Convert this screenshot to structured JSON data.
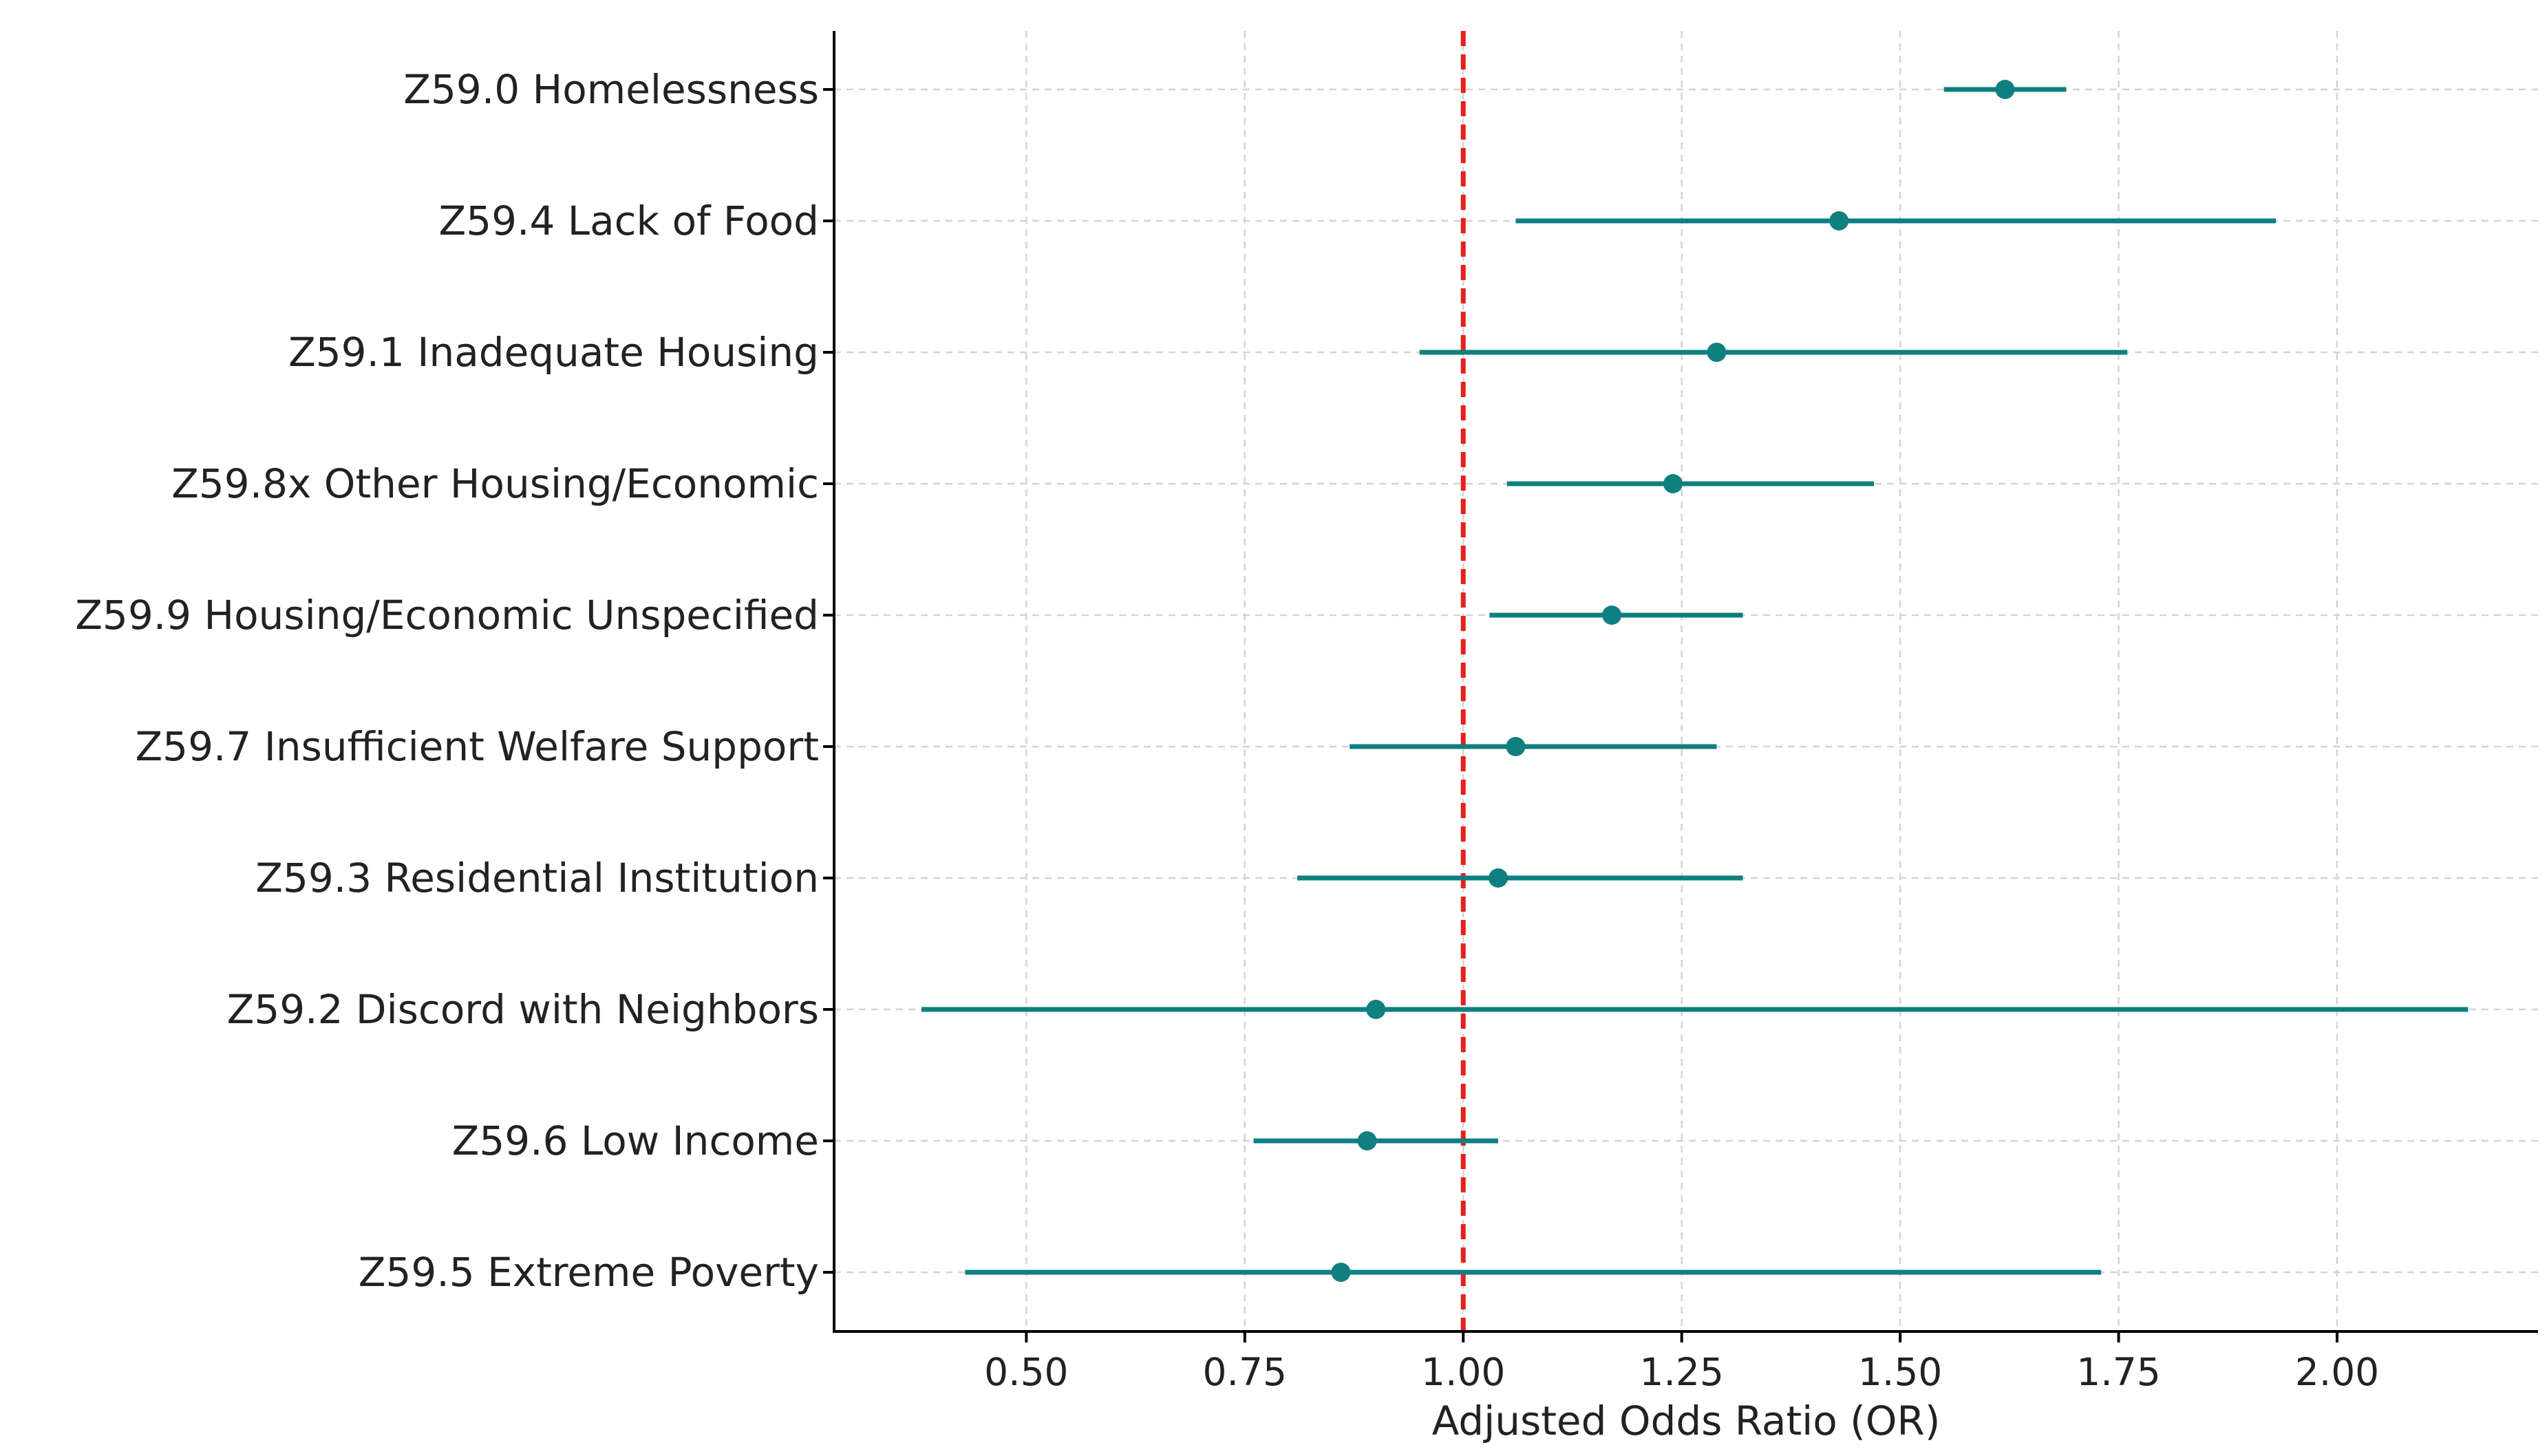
{
  "chart_data": {
    "type": "forest",
    "xlabel": "Adjusted Odds Ratio (OR)",
    "xlim": [
      0.28,
      2.23
    ],
    "xticks": [
      "0.50",
      "0.75",
      "1.00",
      "1.25",
      "1.50",
      "1.75",
      "2.00"
    ],
    "xtick_values": [
      0.5,
      0.75,
      1.0,
      1.25,
      1.5,
      1.75,
      2.0
    ],
    "reference_line": 1.0,
    "grid": true,
    "colors": {
      "marker": "#0f7f7f",
      "reference": "#e3211c"
    },
    "rows": [
      {
        "label": "Z59.0 Homelessness",
        "or": 1.62,
        "ci_low": 1.55,
        "ci_high": 1.69
      },
      {
        "label": "Z59.4 Lack of Food",
        "or": 1.43,
        "ci_low": 1.06,
        "ci_high": 1.93
      },
      {
        "label": "Z59.1 Inadequate Housing",
        "or": 1.29,
        "ci_low": 0.95,
        "ci_high": 1.76
      },
      {
        "label": "Z59.8x Other Housing/Economic",
        "or": 1.24,
        "ci_low": 1.05,
        "ci_high": 1.47
      },
      {
        "label": "Z59.9 Housing/Economic Unspecified",
        "or": 1.17,
        "ci_low": 1.03,
        "ci_high": 1.32
      },
      {
        "label": "Z59.7 Insufficient Welfare Support",
        "or": 1.06,
        "ci_low": 0.87,
        "ci_high": 1.29
      },
      {
        "label": "Z59.3 Residential Institution",
        "or": 1.04,
        "ci_low": 0.81,
        "ci_high": 1.32
      },
      {
        "label": "Z59.2 Discord with Neighbors",
        "or": 0.9,
        "ci_low": 0.38,
        "ci_high": 2.15
      },
      {
        "label": "Z59.6 Low Income",
        "or": 0.89,
        "ci_low": 0.76,
        "ci_high": 1.04
      },
      {
        "label": "Z59.5 Extreme Poverty",
        "or": 0.86,
        "ci_low": 0.43,
        "ci_high": 1.73
      }
    ]
  }
}
